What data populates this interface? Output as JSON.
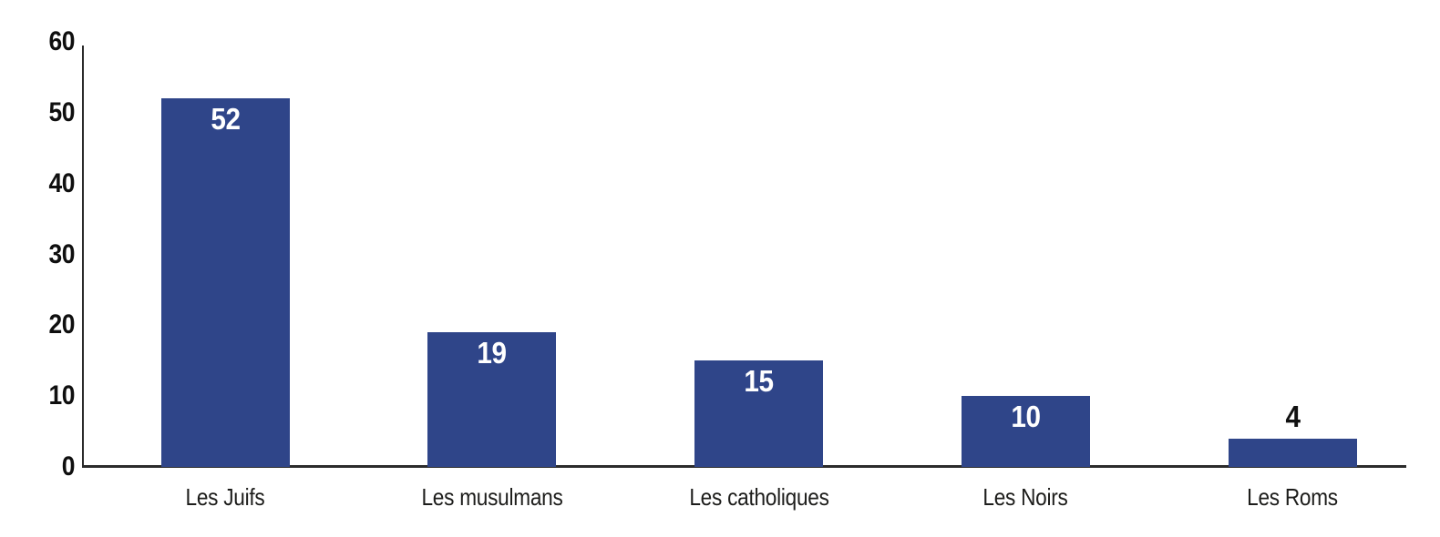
{
  "chart_data": {
    "type": "bar",
    "title": "",
    "xlabel": "",
    "ylabel": "",
    "categories": [
      "Les Juifs",
      "Les musulmans",
      "Les catholiques",
      "Les Noirs",
      "Les Roms"
    ],
    "values": [
      52,
      19,
      15,
      10,
      4
    ],
    "value_labels": [
      "52",
      "19",
      "15",
      "10",
      "4"
    ],
    "value_label_positions": [
      "inside",
      "inside",
      "inside",
      "inside",
      "above"
    ],
    "ylim": [
      0,
      60
    ],
    "yticks": [
      0,
      10,
      20,
      30,
      40,
      50,
      60
    ],
    "grid": false,
    "legend": null,
    "colors": {
      "bar": "#2F4589",
      "axis": "#2b2b2b",
      "tick_label": "#0f0f0f",
      "category_label": "#1d1d1b",
      "value_label_inside": "#ffffff",
      "value_label_above": "#111111",
      "background": "#ffffff"
    }
  }
}
